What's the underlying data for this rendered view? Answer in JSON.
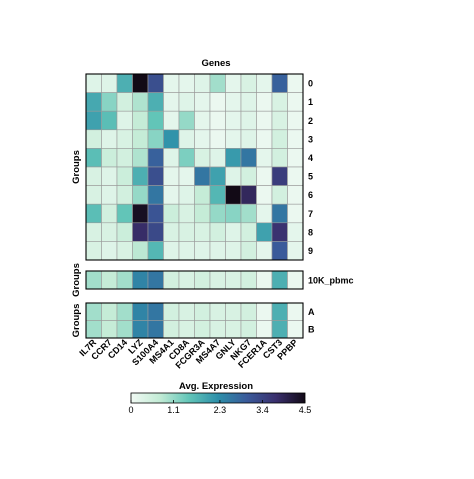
{
  "chart_data": {
    "type": "heatmap",
    "title": "Genes",
    "ylabel": "Groups",
    "genes": [
      "IL7R",
      "CCR7",
      "CD14",
      "LYZ",
      "S100A4",
      "MS4A1",
      "CD8A",
      "FCGR3A",
      "MS4A7",
      "GNLY",
      "NKG7",
      "FCER1A",
      "CST3",
      "PPBP"
    ],
    "panels": [
      {
        "ylabel": "Groups",
        "rows": [
          "0",
          "1",
          "2",
          "3",
          "4",
          "5",
          "6",
          "7",
          "8",
          "9"
        ],
        "values": [
          [
            0.3,
            0.3,
            1.8,
            4.5,
            3.2,
            0.2,
            0.2,
            0.3,
            1.0,
            0.2,
            0.4,
            0.2,
            2.9,
            0.1
          ],
          [
            1.9,
            1.2,
            0.5,
            0.9,
            1.8,
            0.2,
            0.3,
            0.2,
            0.1,
            0.2,
            0.3,
            0.1,
            0.4,
            0.1
          ],
          [
            2.0,
            1.6,
            0.3,
            0.7,
            1.5,
            0.2,
            1.1,
            0.2,
            0.1,
            0.2,
            0.3,
            0.1,
            0.4,
            0.1
          ],
          [
            0.5,
            0.3,
            0.4,
            0.7,
            1.2,
            2.2,
            0.3,
            0.2,
            0.1,
            0.2,
            0.3,
            0.1,
            0.5,
            0.1
          ],
          [
            1.6,
            0.6,
            0.5,
            0.9,
            2.9,
            0.3,
            1.3,
            0.4,
            0.3,
            2.1,
            2.6,
            0.2,
            0.5,
            0.1
          ],
          [
            0.4,
            0.3,
            0.6,
            1.8,
            3.2,
            0.2,
            0.2,
            2.6,
            2.0,
            0.3,
            0.5,
            0.1,
            3.5,
            0.1
          ],
          [
            0.4,
            0.3,
            0.5,
            1.1,
            2.6,
            0.2,
            0.3,
            0.7,
            1.7,
            4.6,
            3.9,
            0.1,
            0.5,
            0.1
          ],
          [
            1.6,
            0.5,
            1.5,
            4.4,
            3.1,
            0.6,
            0.4,
            0.7,
            1.1,
            1.2,
            1.0,
            0.2,
            2.6,
            0.1
          ],
          [
            0.4,
            0.4,
            0.6,
            3.8,
            3.3,
            0.4,
            0.4,
            0.4,
            0.5,
            0.3,
            0.5,
            2.0,
            3.7,
            0.2
          ],
          [
            0.4,
            0.3,
            0.4,
            0.8,
            1.7,
            0.3,
            0.3,
            0.3,
            0.3,
            0.3,
            0.5,
            0.2,
            3.0,
            0.2
          ]
        ]
      },
      {
        "ylabel": "Groups",
        "rows": [
          "10K_pbmc"
        ],
        "values": [
          [
            1.0,
            0.7,
            1.0,
            2.4,
            2.6,
            0.5,
            0.4,
            0.5,
            0.4,
            0.4,
            0.5,
            0.1,
            1.8,
            0.1
          ]
        ]
      },
      {
        "ylabel": "Groups",
        "rows": [
          "A",
          "B"
        ],
        "values": [
          [
            1.0,
            0.7,
            1.0,
            2.4,
            2.6,
            0.5,
            0.4,
            0.5,
            0.4,
            0.4,
            0.5,
            0.1,
            1.8,
            0.1
          ],
          [
            1.0,
            0.7,
            1.0,
            2.4,
            2.6,
            0.5,
            0.4,
            0.5,
            0.4,
            0.4,
            0.5,
            0.1,
            1.8,
            0.1
          ]
        ]
      }
    ],
    "colorbar": {
      "label": "Avg. Expression",
      "ticks": [
        "0",
        "1.1",
        "2.3",
        "3.4",
        "4.5"
      ],
      "range": [
        0,
        4.5
      ],
      "colors": [
        "#f1faf4",
        "#c2ebd5",
        "#62c5b8",
        "#2d8fa9",
        "#3a5a9a",
        "#3a2f6d",
        "#120a16"
      ]
    },
    "grid": true,
    "legend": "bottom"
  }
}
